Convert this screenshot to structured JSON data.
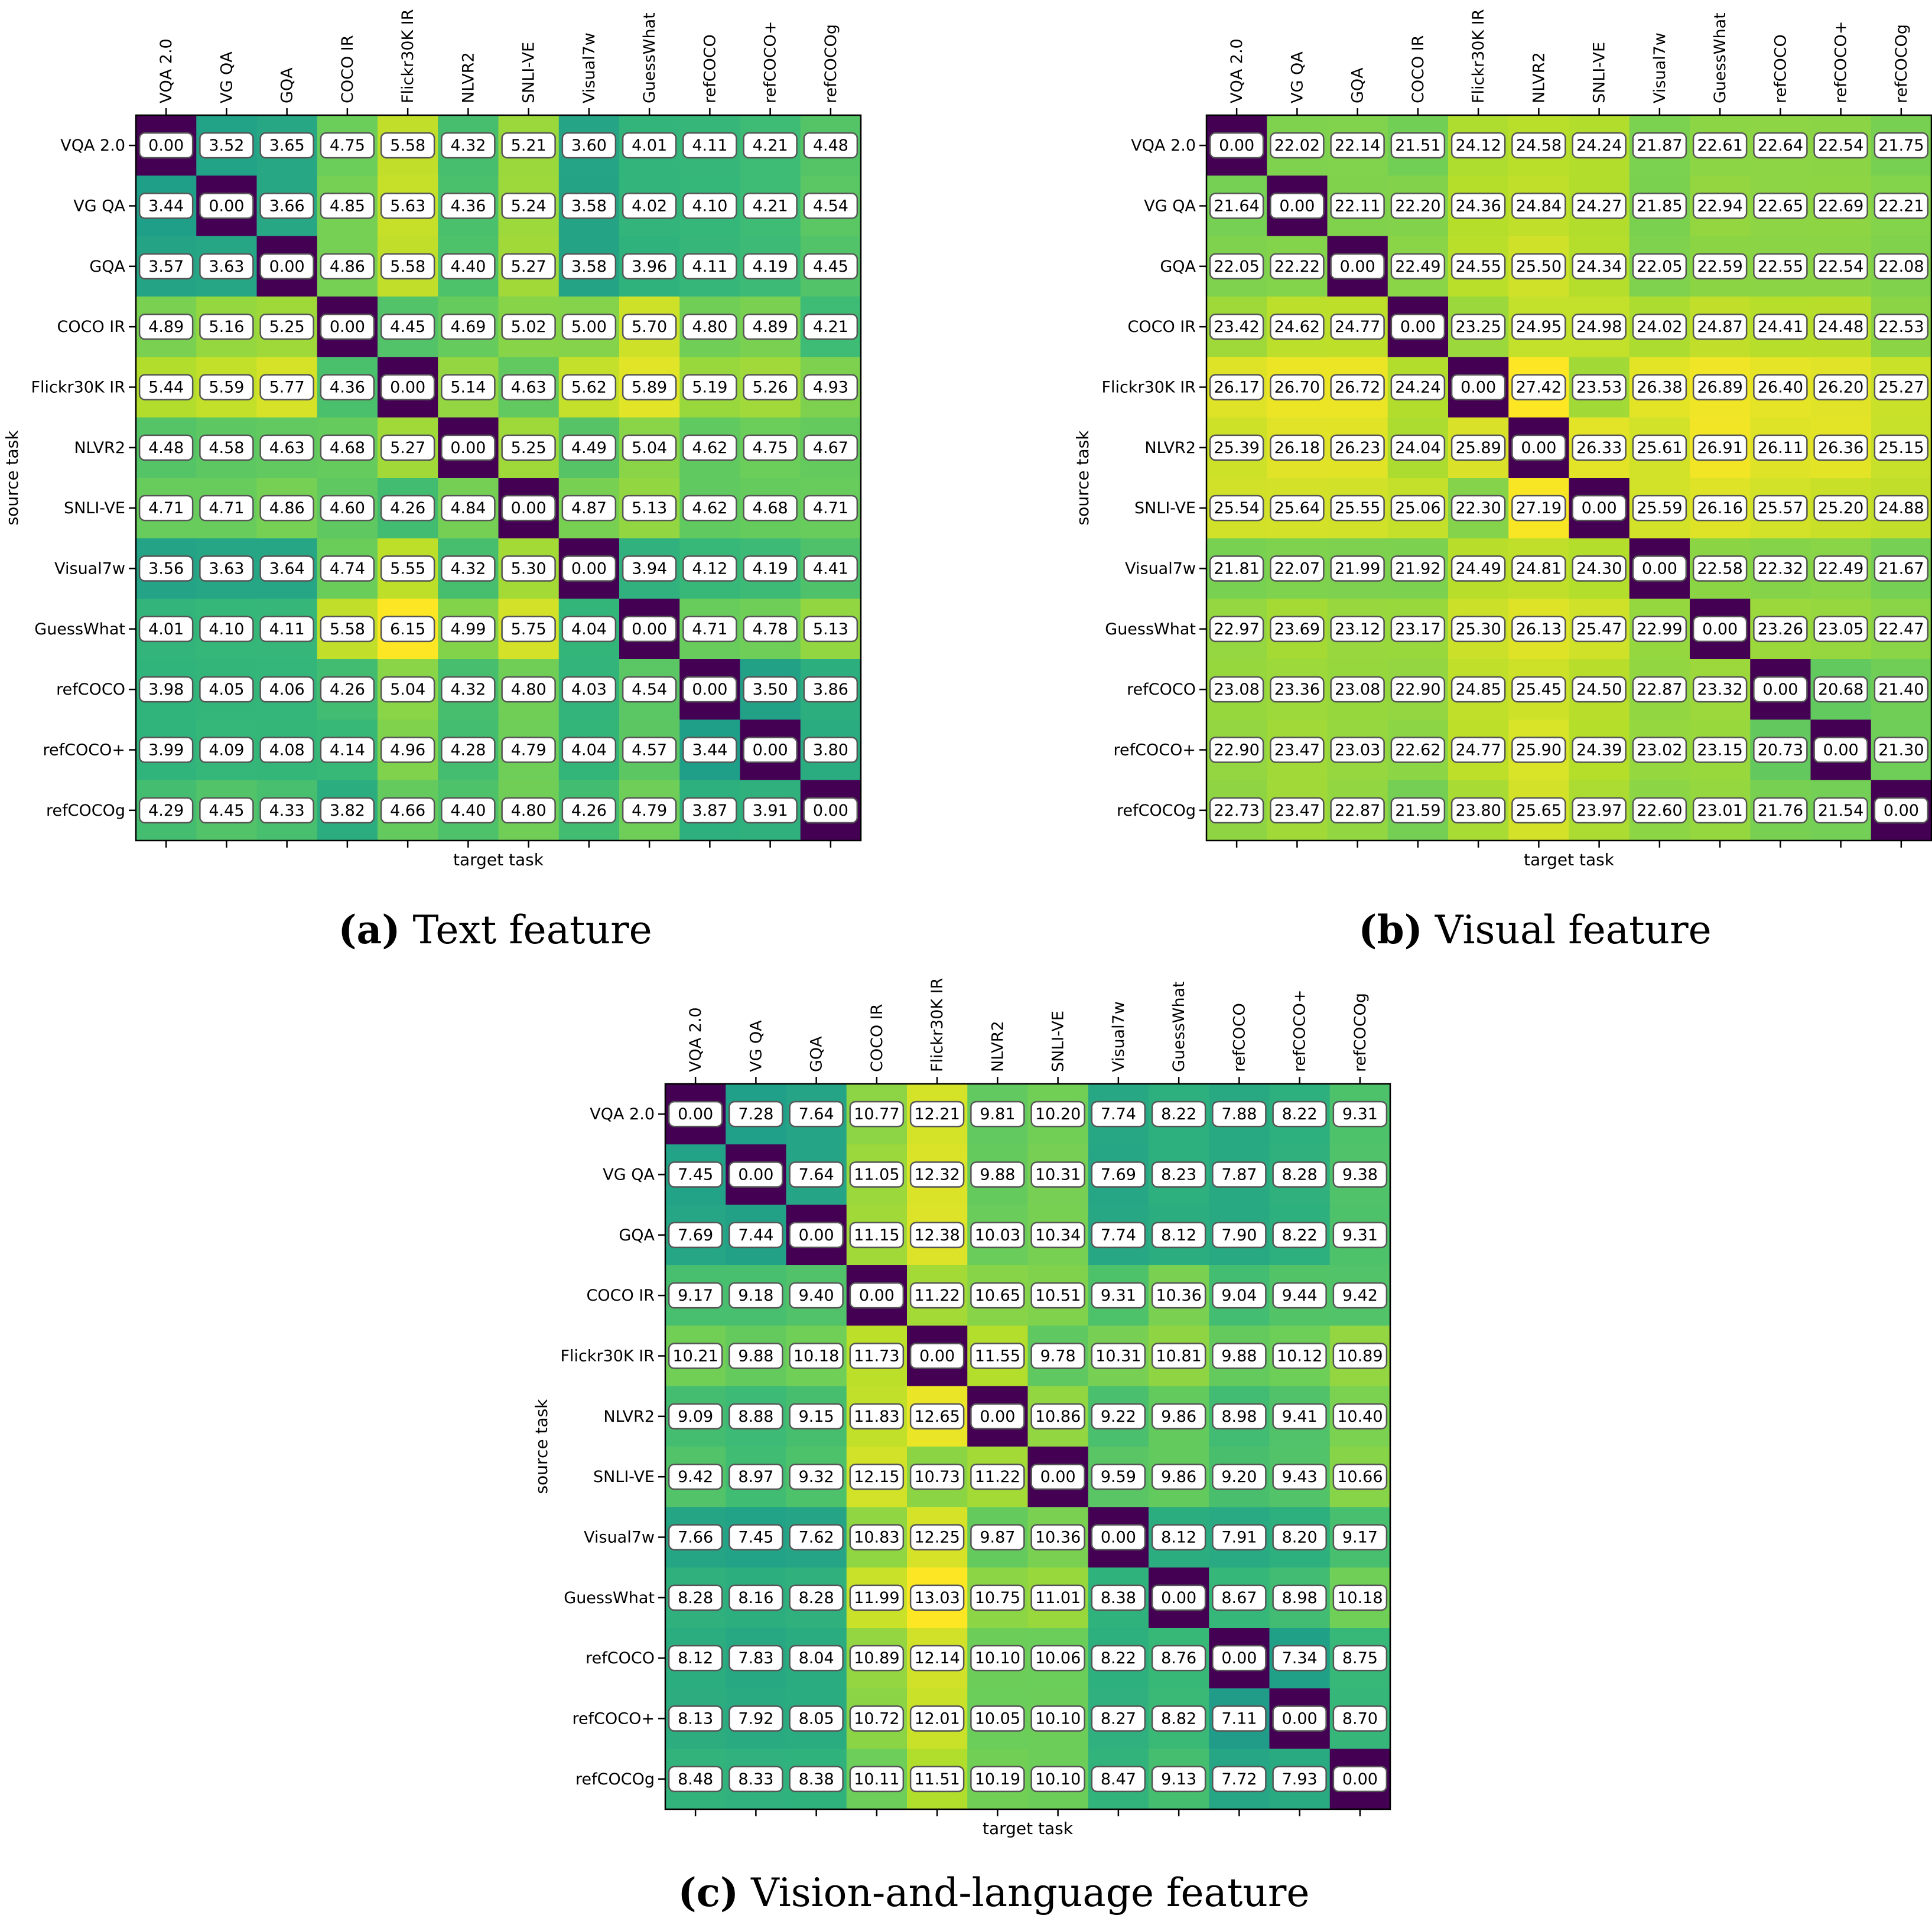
{
  "colormap": [
    "#440154",
    "#482878",
    "#3e4989",
    "#31688e",
    "#26828e",
    "#1f9e89",
    "#35b779",
    "#6ece58",
    "#b5de2b",
    "#fde725"
  ],
  "chart_data": [
    {
      "type": "heatmap",
      "id": "a",
      "caption_letter": "(a)",
      "caption_text": " Text feature",
      "xlabel": "target task",
      "ylabel": "source task",
      "x_categories": [
        "VQA 2.0",
        "VG QA",
        "GQA",
        "COCO IR",
        "Flickr30K IR",
        "NLVR2",
        "SNLI-VE",
        "Visual7w",
        "GuessWhat",
        "refCOCO",
        "refCOCO+",
        "refCOCOg"
      ],
      "y_categories": [
        "VQA 2.0",
        "VG QA",
        "GQA",
        "COCO IR",
        "Flickr30K IR",
        "NLVR2",
        "SNLI-VE",
        "Visual7w",
        "GuessWhat",
        "refCOCO",
        "refCOCO+",
        "refCOCOg"
      ],
      "values": [
        [
          "0.00",
          "3.52",
          "3.65",
          "4.75",
          "5.58",
          "4.32",
          "5.21",
          "3.60",
          "4.01",
          "4.11",
          "4.21",
          "4.48"
        ],
        [
          "3.44",
          "0.00",
          "3.66",
          "4.85",
          "5.63",
          "4.36",
          "5.24",
          "3.58",
          "4.02",
          "4.10",
          "4.21",
          "4.54"
        ],
        [
          "3.57",
          "3.63",
          "0.00",
          "4.86",
          "5.58",
          "4.40",
          "5.27",
          "3.58",
          "3.96",
          "4.11",
          "4.19",
          "4.45"
        ],
        [
          "4.89",
          "5.16",
          "5.25",
          "0.00",
          "4.45",
          "4.69",
          "5.02",
          "5.00",
          "5.70",
          "4.80",
          "4.89",
          "4.21"
        ],
        [
          "5.44",
          "5.59",
          "5.77",
          "4.36",
          "0.00",
          "5.14",
          "4.63",
          "5.62",
          "5.89",
          "5.19",
          "5.26",
          "4.93"
        ],
        [
          "4.48",
          "4.58",
          "4.63",
          "4.68",
          "5.27",
          "0.00",
          "5.25",
          "4.49",
          "5.04",
          "4.62",
          "4.75",
          "4.67"
        ],
        [
          "4.71",
          "4.71",
          "4.86",
          "4.60",
          "4.26",
          "4.84",
          "0.00",
          "4.87",
          "5.13",
          "4.62",
          "4.68",
          "4.71"
        ],
        [
          "3.56",
          "3.63",
          "3.64",
          "4.74",
          "5.55",
          "4.32",
          "5.30",
          "0.00",
          "3.94",
          "4.12",
          "4.19",
          "4.41"
        ],
        [
          "4.01",
          "4.10",
          "4.11",
          "5.58",
          "6.15",
          "4.99",
          "5.75",
          "4.04",
          "0.00",
          "4.71",
          "4.78",
          "5.13"
        ],
        [
          "3.98",
          "4.05",
          "4.06",
          "4.26",
          "5.04",
          "4.32",
          "4.80",
          "4.03",
          "4.54",
          "0.00",
          "3.50",
          "3.86"
        ],
        [
          "3.99",
          "4.09",
          "4.08",
          "4.14",
          "4.96",
          "4.28",
          "4.79",
          "4.04",
          "4.57",
          "3.44",
          "0.00",
          "3.80"
        ],
        [
          "4.29",
          "4.45",
          "4.33",
          "3.82",
          "4.66",
          "4.40",
          "4.80",
          "4.26",
          "4.79",
          "3.87",
          "3.91",
          "0.00"
        ]
      ]
    },
    {
      "type": "heatmap",
      "id": "b",
      "caption_letter": "(b)",
      "caption_text": " Visual feature",
      "xlabel": "target task",
      "ylabel": "source task",
      "x_categories": [
        "VQA 2.0",
        "VG QA",
        "GQA",
        "COCO IR",
        "Flickr30K IR",
        "NLVR2",
        "SNLI-VE",
        "Visual7w",
        "GuessWhat",
        "refCOCO",
        "refCOCO+",
        "refCOCOg"
      ],
      "y_categories": [
        "VQA 2.0",
        "VG QA",
        "GQA",
        "COCO IR",
        "Flickr30K IR",
        "NLVR2",
        "SNLI-VE",
        "Visual7w",
        "GuessWhat",
        "refCOCO",
        "refCOCO+",
        "refCOCOg"
      ],
      "values": [
        [
          "0.00",
          "22.02",
          "22.14",
          "21.51",
          "24.12",
          "24.58",
          "24.24",
          "21.87",
          "22.61",
          "22.64",
          "22.54",
          "21.75"
        ],
        [
          "21.64",
          "0.00",
          "22.11",
          "22.20",
          "24.36",
          "24.84",
          "24.27",
          "21.85",
          "22.94",
          "22.65",
          "22.69",
          "22.21"
        ],
        [
          "22.05",
          "22.22",
          "0.00",
          "22.49",
          "24.55",
          "25.50",
          "24.34",
          "22.05",
          "22.59",
          "22.55",
          "22.54",
          "22.08"
        ],
        [
          "23.42",
          "24.62",
          "24.77",
          "0.00",
          "23.25",
          "24.95",
          "24.98",
          "24.02",
          "24.87",
          "24.41",
          "24.48",
          "22.53"
        ],
        [
          "26.17",
          "26.70",
          "26.72",
          "24.24",
          "0.00",
          "27.42",
          "23.53",
          "26.38",
          "26.89",
          "26.40",
          "26.20",
          "25.27"
        ],
        [
          "25.39",
          "26.18",
          "26.23",
          "24.04",
          "25.89",
          "0.00",
          "26.33",
          "25.61",
          "26.91",
          "26.11",
          "26.36",
          "25.15"
        ],
        [
          "25.54",
          "25.64",
          "25.55",
          "25.06",
          "22.30",
          "27.19",
          "0.00",
          "25.59",
          "26.16",
          "25.57",
          "25.20",
          "24.88"
        ],
        [
          "21.81",
          "22.07",
          "21.99",
          "21.92",
          "24.49",
          "24.81",
          "24.30",
          "0.00",
          "22.58",
          "22.32",
          "22.49",
          "21.67"
        ],
        [
          "22.97",
          "23.69",
          "23.12",
          "23.17",
          "25.30",
          "26.13",
          "25.47",
          "22.99",
          "0.00",
          "23.26",
          "23.05",
          "22.47"
        ],
        [
          "23.08",
          "23.36",
          "23.08",
          "22.90",
          "24.85",
          "25.45",
          "24.50",
          "22.87",
          "23.32",
          "0.00",
          "20.68",
          "21.40"
        ],
        [
          "22.90",
          "23.47",
          "23.03",
          "22.62",
          "24.77",
          "25.90",
          "24.39",
          "23.02",
          "23.15",
          "20.73",
          "0.00",
          "21.30"
        ],
        [
          "22.73",
          "23.47",
          "22.87",
          "21.59",
          "23.80",
          "25.65",
          "23.97",
          "22.60",
          "23.01",
          "21.76",
          "21.54",
          "0.00"
        ]
      ]
    },
    {
      "type": "heatmap",
      "id": "c",
      "caption_letter": "(c)",
      "caption_text": " Vision-and-language feature",
      "xlabel": "target task",
      "ylabel": "source task",
      "x_categories": [
        "VQA 2.0",
        "VG QA",
        "GQA",
        "COCO IR",
        "Flickr30K IR",
        "NLVR2",
        "SNLI-VE",
        "Visual7w",
        "GuessWhat",
        "refCOCO",
        "refCOCO+",
        "refCOCOg"
      ],
      "y_categories": [
        "VQA 2.0",
        "VG QA",
        "GQA",
        "COCO IR",
        "Flickr30K IR",
        "NLVR2",
        "SNLI-VE",
        "Visual7w",
        "GuessWhat",
        "refCOCO",
        "refCOCO+",
        "refCOCOg"
      ],
      "values": [
        [
          "0.00",
          "7.28",
          "7.64",
          "10.77",
          "12.21",
          "9.81",
          "10.20",
          "7.74",
          "8.22",
          "7.88",
          "8.22",
          "9.31"
        ],
        [
          "7.45",
          "0.00",
          "7.64",
          "11.05",
          "12.32",
          "9.88",
          "10.31",
          "7.69",
          "8.23",
          "7.87",
          "8.28",
          "9.38"
        ],
        [
          "7.69",
          "7.44",
          "0.00",
          "11.15",
          "12.38",
          "10.03",
          "10.34",
          "7.74",
          "8.12",
          "7.90",
          "8.22",
          "9.31"
        ],
        [
          "9.17",
          "9.18",
          "9.40",
          "0.00",
          "11.22",
          "10.65",
          "10.51",
          "9.31",
          "10.36",
          "9.04",
          "9.44",
          "9.42"
        ],
        [
          "10.21",
          "9.88",
          "10.18",
          "11.73",
          "0.00",
          "11.55",
          "9.78",
          "10.31",
          "10.81",
          "9.88",
          "10.12",
          "10.89"
        ],
        [
          "9.09",
          "8.88",
          "9.15",
          "11.83",
          "12.65",
          "0.00",
          "10.86",
          "9.22",
          "9.86",
          "8.98",
          "9.41",
          "10.40"
        ],
        [
          "9.42",
          "8.97",
          "9.32",
          "12.15",
          "10.73",
          "11.22",
          "0.00",
          "9.59",
          "9.86",
          "9.20",
          "9.43",
          "10.66"
        ],
        [
          "7.66",
          "7.45",
          "7.62",
          "10.83",
          "12.25",
          "9.87",
          "10.36",
          "0.00",
          "8.12",
          "7.91",
          "8.20",
          "9.17"
        ],
        [
          "8.28",
          "8.16",
          "8.28",
          "11.99",
          "13.03",
          "10.75",
          "11.01",
          "8.38",
          "0.00",
          "8.67",
          "8.98",
          "10.18"
        ],
        [
          "8.12",
          "7.83",
          "8.04",
          "10.89",
          "12.14",
          "10.10",
          "10.06",
          "8.22",
          "8.76",
          "0.00",
          "7.34",
          "8.75"
        ],
        [
          "8.13",
          "7.92",
          "8.05",
          "10.72",
          "12.01",
          "10.05",
          "10.10",
          "8.27",
          "8.82",
          "7.11",
          "0.00",
          "8.70"
        ],
        [
          "8.48",
          "8.33",
          "8.38",
          "10.11",
          "11.51",
          "10.19",
          "10.10",
          "8.47",
          "9.13",
          "7.72",
          "7.93",
          "0.00"
        ]
      ]
    }
  ]
}
